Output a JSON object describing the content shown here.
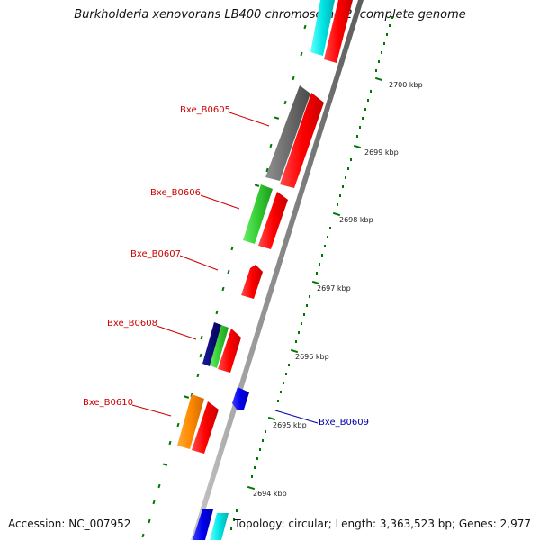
{
  "title": "Burkholderia xenovorans LB400 chromosome 2, complete genome",
  "accession": "Accession: NC_007952",
  "summary": "Topology: circular; Length: 3,363,523 bp; Genes: 2,977",
  "ticks": [
    "2700 kbp",
    "2699 kbp",
    "2698 kbp",
    "2697 kbp",
    "2696 kbp",
    "2695 kbp",
    "2694 kbp"
  ],
  "gene_labels": [
    "Bxe_B0605",
    "Bxe_B0606",
    "Bxe_B0607",
    "Bxe_B0608",
    "Bxe_B0610",
    "Bxe_B0609"
  ],
  "colors": {
    "forward_cds": "#ff0000",
    "reverse_cds": "#0000ff",
    "cog_grey": "#777777",
    "cog_green": "#33cc33",
    "cog_navy": "#000077",
    "cog_orange": "#ff8800",
    "cog_cyan": "#00dddd",
    "backbone": "#999999",
    "tick": "#007700",
    "label_red": "#cc0000",
    "label_blue": "#0000aa"
  }
}
